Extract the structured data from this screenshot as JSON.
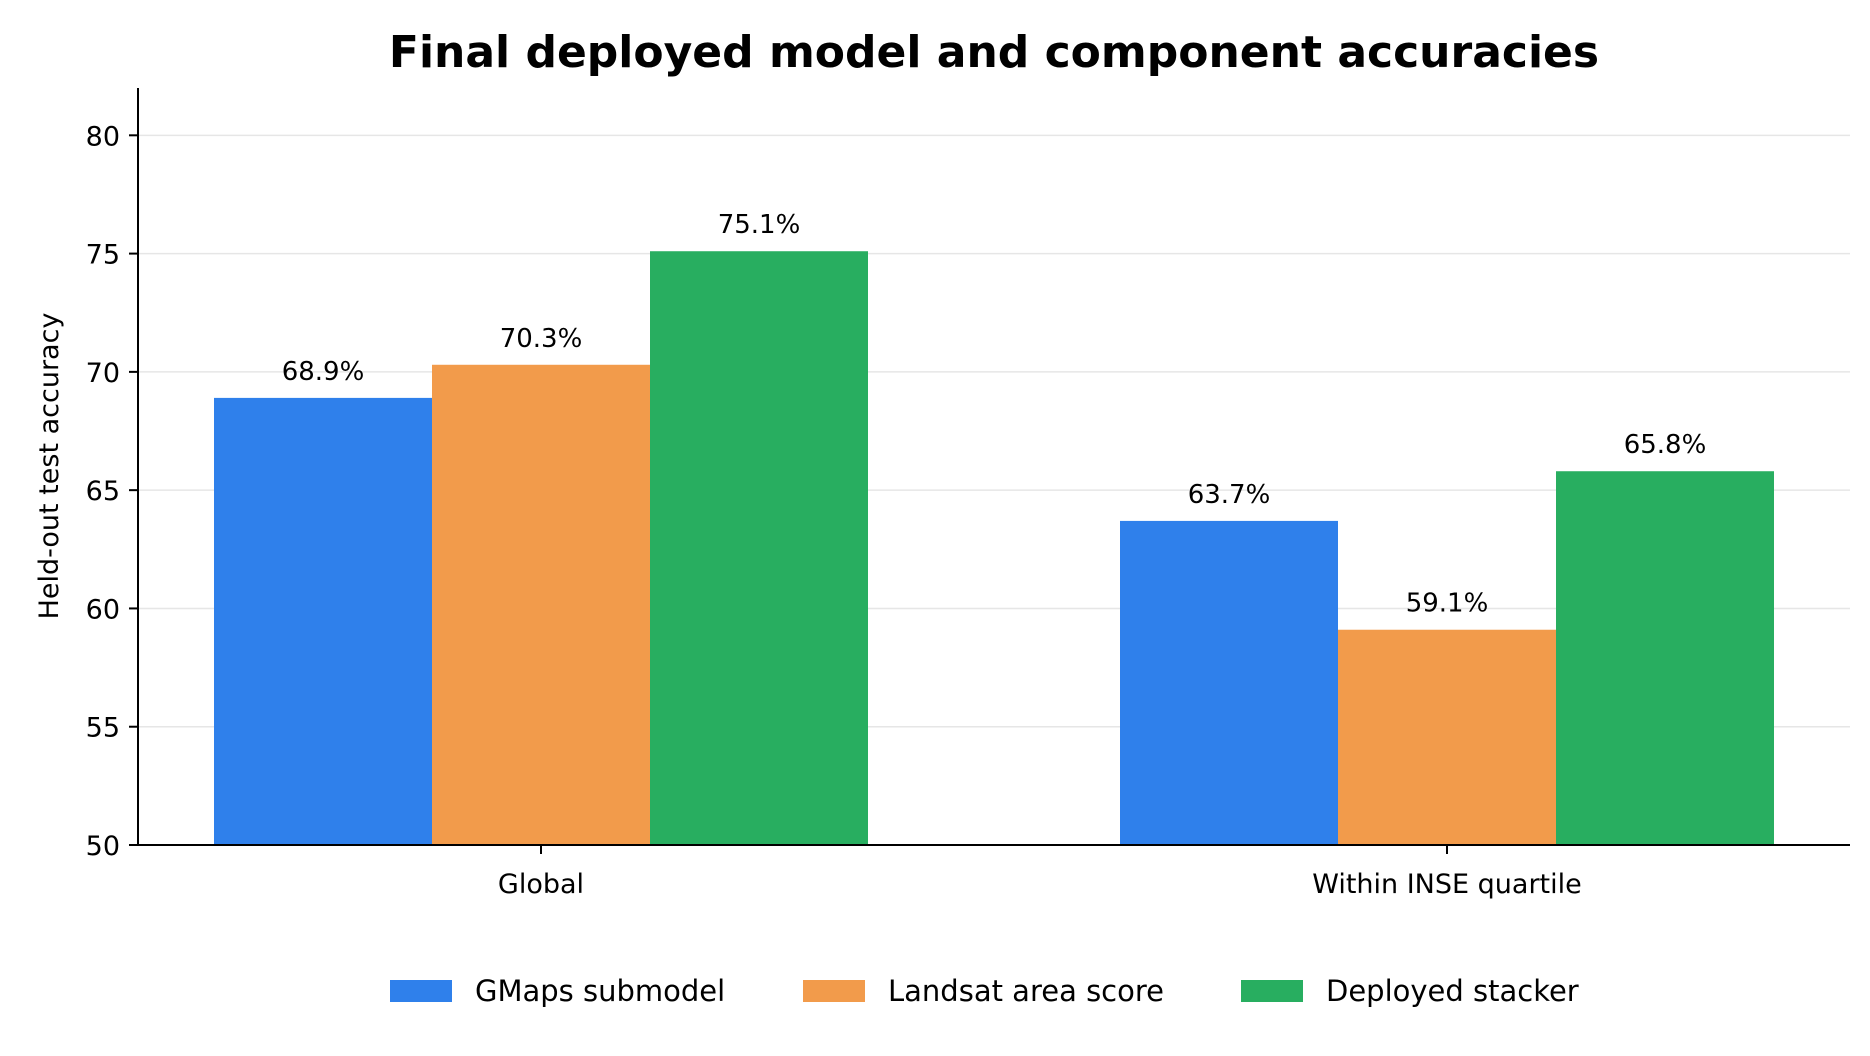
{
  "chart_data": {
    "type": "bar",
    "title": "Final deployed model and component accuracies",
    "xlabel": "",
    "ylabel": "Held-out test accuracy",
    "categories": [
      "Global",
      "Within INSE quartile"
    ],
    "series": [
      {
        "name": "GMaps submodel",
        "values": [
          68.9,
          63.7
        ],
        "labels": [
          "68.9%",
          "63.7%"
        ],
        "color": "#2f80eb"
      },
      {
        "name": "Landsat area score",
        "values": [
          70.3,
          59.1
        ],
        "labels": [
          "70.3%",
          "59.1%"
        ],
        "color": "#f29b4b"
      },
      {
        "name": "Deployed stacker",
        "values": [
          75.1,
          65.8
        ],
        "labels": [
          "75.1%",
          "65.8%"
        ],
        "color": "#28ae60"
      }
    ],
    "ylim": [
      50,
      82
    ],
    "yticks": [
      50,
      55,
      60,
      65,
      70,
      75,
      80
    ],
    "grid": "horizontal",
    "legend_position": "bottom-center"
  }
}
